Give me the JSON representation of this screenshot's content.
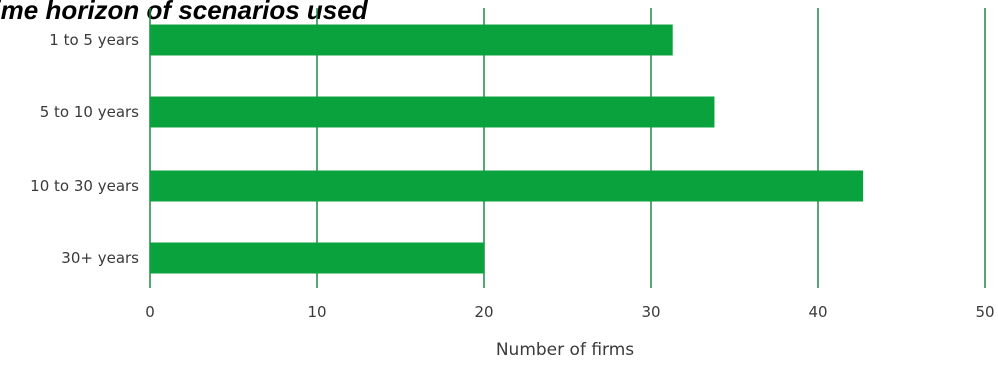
{
  "chart_data": {
    "type": "bar",
    "orientation": "horizontal",
    "title": "Time horizon of scenarios used",
    "categories": [
      "1 to 5 years",
      "5 to 10 years",
      "10 to 30 years",
      "30+ years"
    ],
    "values": [
      31.3,
      33.8,
      42.7,
      20.0
    ],
    "xlabel": "Number of firms",
    "ylabel": "",
    "xlim": [
      0,
      50
    ],
    "xticks": [
      0,
      10,
      20,
      30,
      40,
      50
    ],
    "grid": "vertical",
    "legend": "none",
    "bar_color": "#0aa23c",
    "grid_color": "#1f8a45"
  }
}
